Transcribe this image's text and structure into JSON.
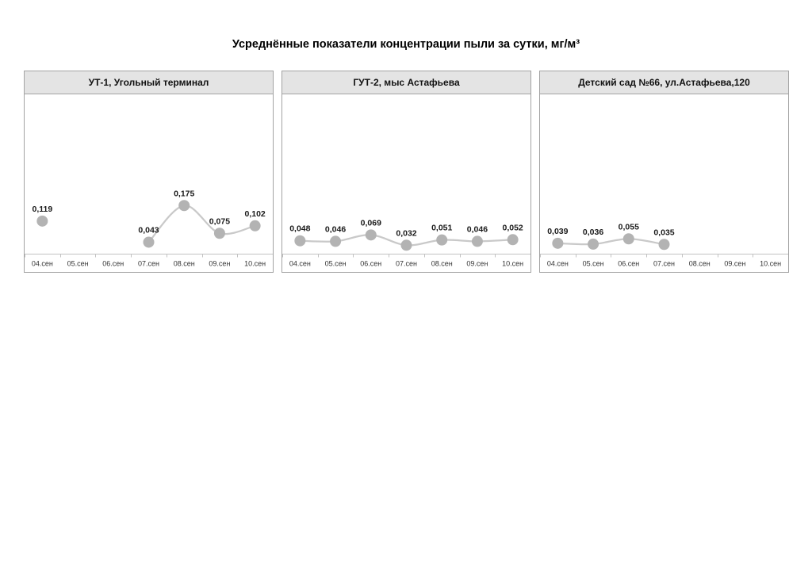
{
  "page_title": "Усреднённые показатели концентрации пыли за сутки, мг/м³",
  "colors": {
    "marker": "#b3b3b3",
    "line": "#c9c9c9",
    "axis": "#c2c2c2",
    "panel_border": "#a3a3a3",
    "header_bg": "#e4e4e4",
    "label_text": "#1a1a1a",
    "axis_text": "#333333"
  },
  "chart_data": [
    {
      "type": "line",
      "title": "УТ-1, Угольный терминал",
      "categories": [
        "04.сен",
        "05.сен",
        "06.сен",
        "07.сен",
        "08.сен",
        "09.сен",
        "10.сен"
      ],
      "values": [
        0.119,
        null,
        null,
        0.043,
        0.175,
        0.075,
        0.102
      ],
      "point_labels": [
        "0,119",
        "",
        "",
        "0,043",
        "0,175",
        "0,075",
        "0,102"
      ],
      "xlabel": "",
      "ylabel": "",
      "ylim": [
        0,
        0.575
      ],
      "grid": false,
      "legend": "none"
    },
    {
      "type": "line",
      "title": "ГУТ-2, мыс Астафьева",
      "categories": [
        "04.сен",
        "05.сен",
        "06.сен",
        "07.сен",
        "08.сен",
        "09.сен",
        "10.сен"
      ],
      "values": [
        0.048,
        0.046,
        0.069,
        0.032,
        0.051,
        0.046,
        0.052
      ],
      "point_labels": [
        "0,048",
        "0,046",
        "0,069",
        "0,032",
        "0,051",
        "0,046",
        "0,052"
      ],
      "xlabel": "",
      "ylabel": "",
      "ylim": [
        0,
        0.575
      ],
      "grid": false,
      "legend": "none"
    },
    {
      "type": "line",
      "title": "Детский сад №66, ул.Астафьева,120",
      "categories": [
        "04.сен",
        "05.сен",
        "06.сен",
        "07.сен",
        "08.сен",
        "09.сен",
        "10.сен"
      ],
      "values": [
        0.039,
        0.036,
        0.055,
        0.035,
        null,
        null,
        null
      ],
      "point_labels": [
        "0,039",
        "0,036",
        "0,055",
        "0,035",
        "",
        "",
        ""
      ],
      "xlabel": "",
      "ylabel": "",
      "ylim": [
        0,
        0.575
      ],
      "grid": false,
      "legend": "none"
    }
  ]
}
